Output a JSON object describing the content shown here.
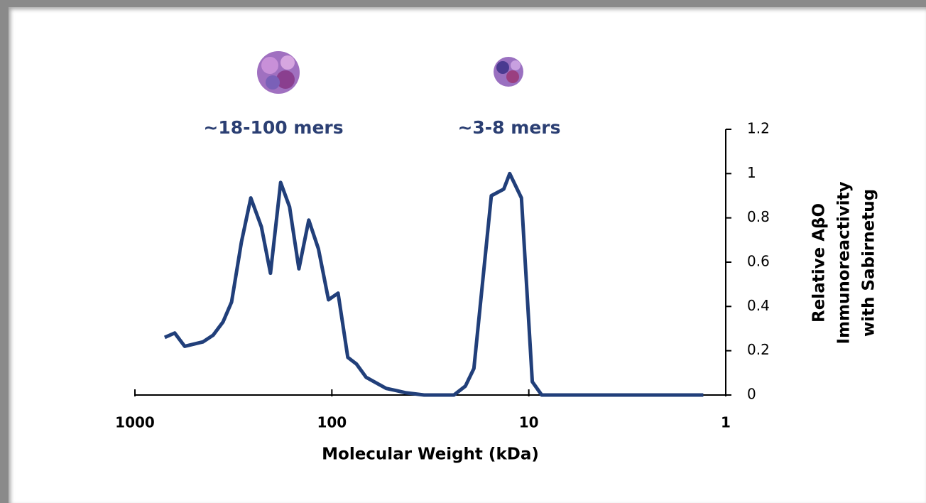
{
  "chart_data": {
    "type": "line",
    "log_x": true,
    "x_label": "Molecular Weight (kDa)",
    "y_label": [
      "Relative AβO",
      "Immunoreactivity",
      "with Sabirnetug"
    ],
    "annotations": [
      "~18-100 mers",
      "~3-8 mers"
    ],
    "xlim": [
      1000,
      1
    ],
    "xticks": [
      1000,
      100,
      10,
      1
    ],
    "ylim": [
      0,
      1.2
    ],
    "yticks": [
      0,
      0.2,
      0.4,
      0.6,
      0.8,
      1,
      1.2
    ],
    "y_axis_side": "right",
    "series": [
      {
        "color": "#213f7a",
        "x": [
          706,
          628,
          559,
          451,
          401,
          357,
          323,
          288,
          258,
          228,
          205,
          182,
          164,
          147,
          131,
          117,
          104,
          93,
          83,
          75,
          67,
          53,
          47,
          42,
          34,
          24,
          21,
          19,
          15.5,
          13.4,
          12.5,
          10.9,
          9.6,
          8.6,
          5.3,
          2.75,
          1.3
        ],
        "values": [
          0.26,
          0.28,
          0.22,
          0.24,
          0.27,
          0.33,
          0.42,
          0.69,
          0.89,
          0.76,
          0.55,
          0.96,
          0.85,
          0.57,
          0.79,
          0.66,
          0.43,
          0.46,
          0.17,
          0.14,
          0.08,
          0.03,
          0.02,
          0.01,
          0,
          0,
          0.04,
          0.12,
          0.9,
          0.93,
          1.0,
          0.89,
          0.06,
          0,
          0,
          0,
          0
        ]
      }
    ]
  }
}
